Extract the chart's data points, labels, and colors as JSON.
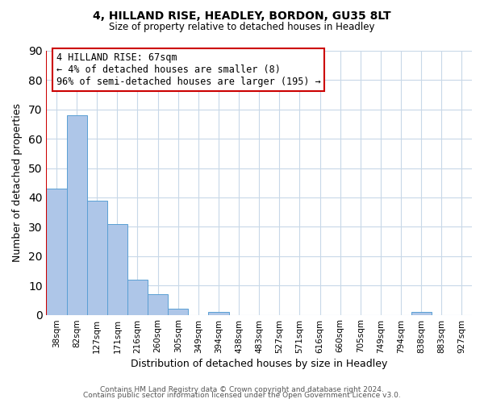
{
  "title": "4, HILLAND RISE, HEADLEY, BORDON, GU35 8LT",
  "subtitle": "Size of property relative to detached houses in Headley",
  "xlabel": "Distribution of detached houses by size in Headley",
  "ylabel": "Number of detached properties",
  "bar_categories": [
    "38sqm",
    "82sqm",
    "127sqm",
    "171sqm",
    "216sqm",
    "260sqm",
    "305sqm",
    "349sqm",
    "394sqm",
    "438sqm",
    "483sqm",
    "527sqm",
    "571sqm",
    "616sqm",
    "660sqm",
    "705sqm",
    "749sqm",
    "794sqm",
    "838sqm",
    "883sqm",
    "927sqm"
  ],
  "bar_values": [
    43,
    68,
    39,
    31,
    12,
    7,
    2,
    0,
    1,
    0,
    0,
    0,
    0,
    0,
    0,
    0,
    0,
    0,
    1,
    0,
    0
  ],
  "bar_color": "#aec6e8",
  "bar_edge_color": "#5a9fd4",
  "ylim": [
    0,
    90
  ],
  "yticks": [
    0,
    10,
    20,
    30,
    40,
    50,
    60,
    70,
    80,
    90
  ],
  "annotation_line1": "4 HILLAND RISE: 67sqm",
  "annotation_line2": "← 4% of detached houses are smaller (8)",
  "annotation_line3": "96% of semi-detached houses are larger (195) →",
  "annotation_box_color": "#ffffff",
  "annotation_border_color": "#cc0000",
  "marker_color": "#cc0000",
  "footer_line1": "Contains HM Land Registry data © Crown copyright and database right 2024.",
  "footer_line2": "Contains public sector information licensed under the Open Government Licence v3.0.",
  "bg_color": "#ffffff",
  "grid_color": "#c8d8e8"
}
